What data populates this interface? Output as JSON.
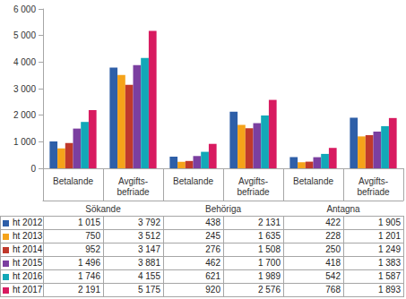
{
  "chart_data": {
    "type": "bar",
    "categories": [
      "Betalande",
      "Avgifts-befriade",
      "Betalande",
      "Avgifts-befriade",
      "Betalande",
      "Avgifts-befriade"
    ],
    "category_groups": [
      "Sökande",
      "Behöriga",
      "Antagna"
    ],
    "series": [
      {
        "name": "ht 2012",
        "color": "#2E5FA8",
        "values": [
          1015,
          3792,
          438,
          2131,
          422,
          1905
        ],
        "value_labels": [
          "1 015",
          "3 792",
          "438",
          "2 131",
          "422",
          "1 905"
        ]
      },
      {
        "name": "ht 2013",
        "color": "#F5A31A",
        "values": [
          750,
          3512,
          245,
          1635,
          228,
          1201
        ],
        "value_labels": [
          "750",
          "3 512",
          "245",
          "1 635",
          "228",
          "1 201"
        ]
      },
      {
        "name": "ht 2014",
        "color": "#C0392B",
        "values": [
          952,
          3147,
          276,
          1508,
          250,
          1249
        ],
        "value_labels": [
          "952",
          "3 147",
          "276",
          "1 508",
          "250",
          "1 249"
        ]
      },
      {
        "name": "ht 2015",
        "color": "#7B3FA0",
        "values": [
          1496,
          3881,
          462,
          1700,
          418,
          1383
        ],
        "value_labels": [
          "1 496",
          "3 881",
          "462",
          "1 700",
          "418",
          "1 383"
        ]
      },
      {
        "name": "ht 2016",
        "color": "#12A8B8",
        "values": [
          1746,
          4155,
          621,
          1989,
          542,
          1587
        ],
        "value_labels": [
          "1 746",
          "4 155",
          "621",
          "1 989",
          "542",
          "1 587"
        ]
      },
      {
        "name": "ht 2017",
        "color": "#D81B60",
        "values": [
          2191,
          5175,
          920,
          2576,
          768,
          1893
        ],
        "value_labels": [
          "2 191",
          "5 175",
          "920",
          "2 576",
          "768",
          "1 893"
        ]
      }
    ],
    "ylim": [
      0,
      6000
    ],
    "yticks": [
      0,
      {
        "value": 1000,
        "label": "1 000"
      },
      {
        "value": 2000,
        "label": "2 000"
      },
      {
        "value": 3000,
        "label": "3 000"
      },
      {
        "value": 4000,
        "label": "4 000"
      },
      {
        "value": 5000,
        "label": "5 000"
      },
      {
        "value": 6000,
        "label": "6 000"
      }
    ],
    "grid": false,
    "data_labels": true
  }
}
